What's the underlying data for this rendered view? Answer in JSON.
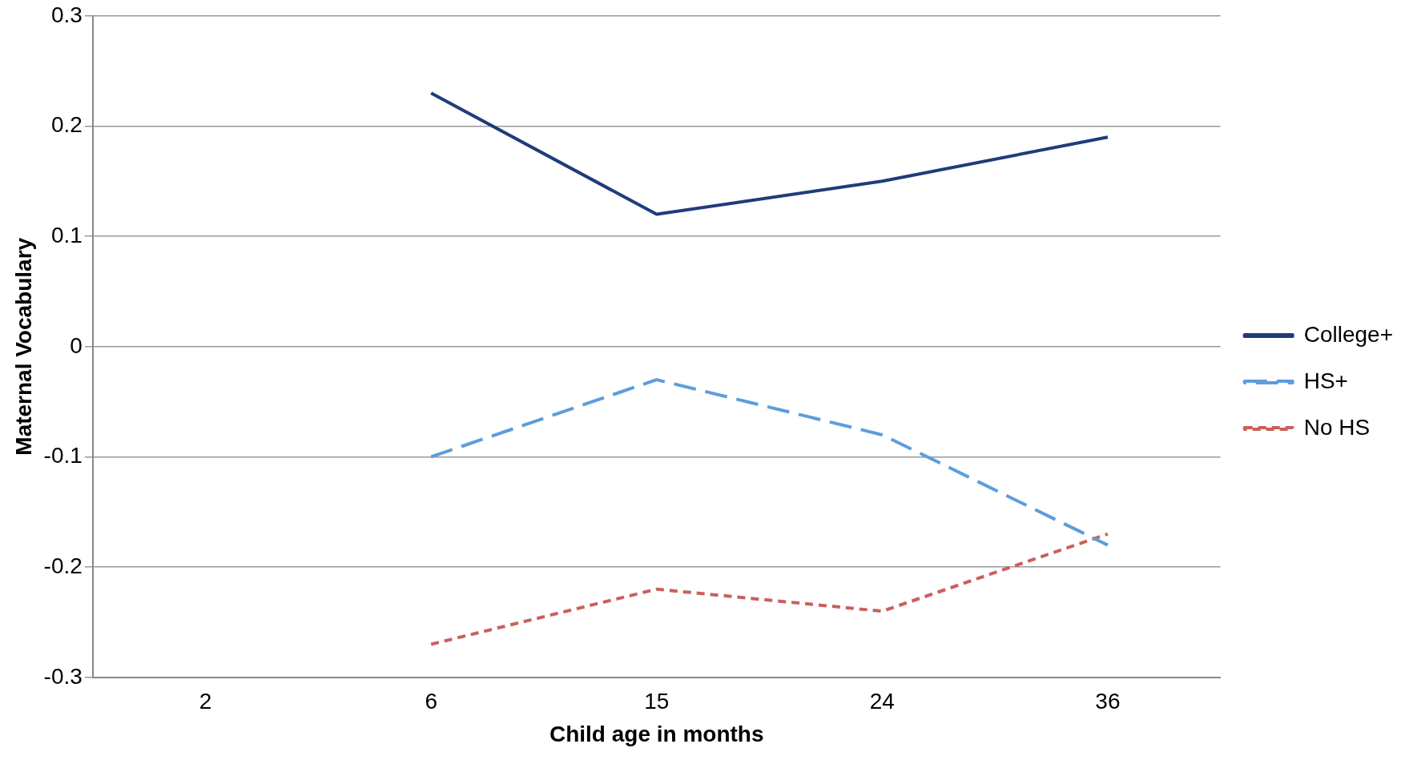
{
  "chart_data": {
    "type": "line",
    "xlabel": "Child age in months",
    "ylabel": "Maternal Vocabulary",
    "categories": [
      "2",
      "6",
      "15",
      "24",
      "36"
    ],
    "series": [
      {
        "name": "College+",
        "color": "#1f3c7a",
        "line_style": "solid",
        "values": [
          null,
          0.23,
          0.12,
          0.15,
          0.19
        ]
      },
      {
        "name": "HS+",
        "color": "#5d9ddb",
        "line_style": "dashed",
        "values": [
          null,
          -0.1,
          -0.03,
          -0.08,
          -0.18
        ]
      },
      {
        "name": "No HS",
        "color": "#c9605c",
        "line_style": "dotted",
        "values": [
          null,
          -0.27,
          -0.22,
          -0.24,
          -0.17
        ]
      }
    ],
    "ylim": [
      -0.3,
      0.3
    ],
    "yticks": [
      -0.3,
      -0.2,
      -0.1,
      0,
      0.1,
      0.2,
      0.3
    ],
    "grid": "y",
    "legend": "right",
    "marker": "none"
  }
}
